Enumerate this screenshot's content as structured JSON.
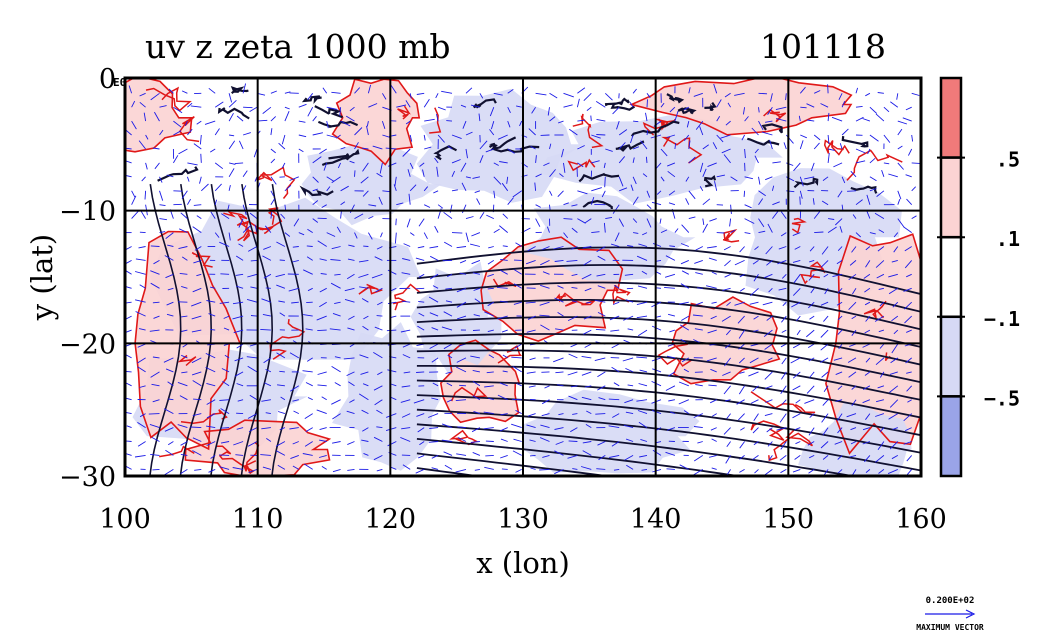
{
  "title": "uv z zeta 1000 mb",
  "date_label": "101118",
  "small_label": "E0",
  "x_axis": {
    "label": "x (lon)",
    "range": [
      100,
      160
    ],
    "ticks": [
      "100",
      "110",
      "120",
      "130",
      "140",
      "150",
      "160"
    ]
  },
  "y_axis": {
    "label": "y (lat)",
    "range": [
      -30,
      0
    ],
    "ticks": [
      "0",
      "−10",
      "−20",
      "−30"
    ]
  },
  "grid": true,
  "colorbar": {
    "labels": [
      ".5",
      ".1",
      "−.1",
      "−.5"
    ],
    "colors": [
      "#f07a7a",
      "#fbd3d3",
      "#ffffff",
      "#d6d9f5",
      "#9aa4e8"
    ]
  },
  "vector_legend": {
    "magnitude": "0.200E+02",
    "caption": "MAXIMUM VECTOR"
  },
  "colors": {
    "positive_contour": "#e01818",
    "negative_fill": "#d6d9f5",
    "positive_fill": "#fbd3d3",
    "vector": "#1a1ae6",
    "height_contour": "#101030"
  }
}
